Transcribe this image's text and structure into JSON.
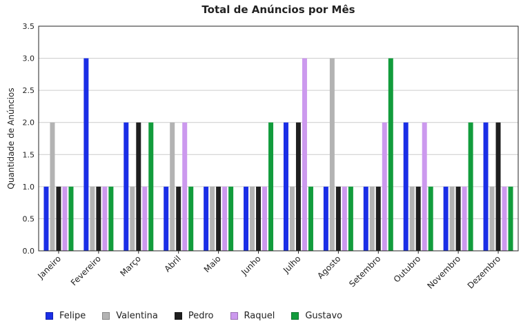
{
  "chart_data": {
    "type": "bar",
    "title": "Total de Anúncios por Mês",
    "xlabel": "",
    "ylabel": "Quantidade de Anúncios",
    "ylim": [
      0,
      3.5
    ],
    "yticks": [
      "0.0",
      "0.5",
      "1.0",
      "1.5",
      "2.0",
      "2.5",
      "3.0",
      "3.5"
    ],
    "grid": true,
    "legend_position": "bottom-left",
    "categories": [
      "Janeiro",
      "Fevereiro",
      "Março",
      "Abril",
      "Maio",
      "Junho",
      "Julho",
      "Agosto",
      "Setembro",
      "Outubro",
      "Novembro",
      "Dezembro"
    ],
    "series": [
      {
        "name": "Felipe",
        "color": "#1a2ee6",
        "values": [
          1,
          3,
          2,
          1,
          1,
          1,
          2,
          1,
          1,
          2,
          1,
          2
        ]
      },
      {
        "name": "Valentina",
        "color": "#b3b3b3",
        "values": [
          2,
          1,
          1,
          2,
          1,
          1,
          1,
          3,
          1,
          1,
          1,
          1
        ]
      },
      {
        "name": "Pedro",
        "color": "#1f1f1f",
        "values": [
          1,
          1,
          2,
          1,
          1,
          1,
          2,
          1,
          1,
          1,
          1,
          2
        ]
      },
      {
        "name": "Raquel",
        "color": "#cc99ee",
        "values": [
          1,
          1,
          1,
          2,
          1,
          1,
          3,
          1,
          2,
          2,
          1,
          1
        ]
      },
      {
        "name": "Gustavo",
        "color": "#129c3c",
        "values": [
          1,
          1,
          2,
          1,
          1,
          2,
          1,
          1,
          3,
          1,
          2,
          1
        ]
      }
    ]
  }
}
